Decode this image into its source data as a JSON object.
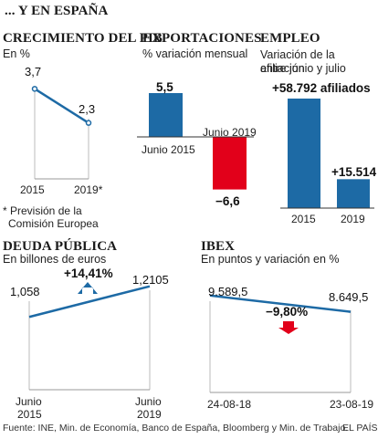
{
  "title": "... Y EN ESPAÑA",
  "colors": {
    "blue": "#1d6aa5",
    "red": "#e2001a",
    "line": "#1d6aa5",
    "rule": "#333333"
  },
  "chart_data": [
    {
      "type": "line",
      "title": "CRECIMIENTO DEL PIB",
      "subtitle": "En %",
      "x": [
        "2015",
        "2019*"
      ],
      "series": [
        {
          "values": [
            3.7,
            2.3
          ],
          "labels": [
            "3,7",
            "2,3"
          ]
        }
      ],
      "ylim": [
        0,
        4.2
      ],
      "footnote": [
        "* Previsión de la",
        "Comisión Europea"
      ]
    },
    {
      "type": "bar",
      "title": "EXPORTACIONES",
      "subtitle": "% variación mensual",
      "categories": [
        "Junio 2015",
        "Junio 2019"
      ],
      "values": [
        5.5,
        -6.6
      ],
      "value_labels": [
        "5,5",
        "−6,6"
      ]
    },
    {
      "type": "bar",
      "title": "EMPLEO",
      "subtitle": [
        "Variación de la afiliación",
        "entre junio y julio"
      ],
      "categories": [
        "2015",
        "2019"
      ],
      "values": [
        58792,
        15514
      ],
      "value_labels": [
        "+58.792 afiliados",
        "+15.514"
      ]
    },
    {
      "type": "line",
      "title": "DEUDA PÚBLICA",
      "subtitle": "En billones de euros",
      "x": [
        [
          "Junio",
          "2015"
        ],
        [
          "Junio",
          "2019"
        ]
      ],
      "series": [
        {
          "values": [
            1.058,
            1.2105
          ],
          "labels": [
            "1,058",
            "1,2105"
          ]
        }
      ],
      "change_label": "+14,41%",
      "change_direction": "up"
    },
    {
      "type": "line",
      "title": "IBEX",
      "subtitle": "En puntos y variación en %",
      "x": [
        "24-08-18",
        "23-08-19"
      ],
      "series": [
        {
          "values": [
            9589.5,
            8649.5
          ],
          "labels": [
            "9.589,5",
            "8.649,5"
          ]
        }
      ],
      "change_label": "−9,80%",
      "change_direction": "down"
    }
  ],
  "footer": {
    "source": "Fuente: INE, Min. de Economía, Banco de España, Bloomberg y Min. de Trabajo.",
    "brand": "EL PAÍS"
  }
}
